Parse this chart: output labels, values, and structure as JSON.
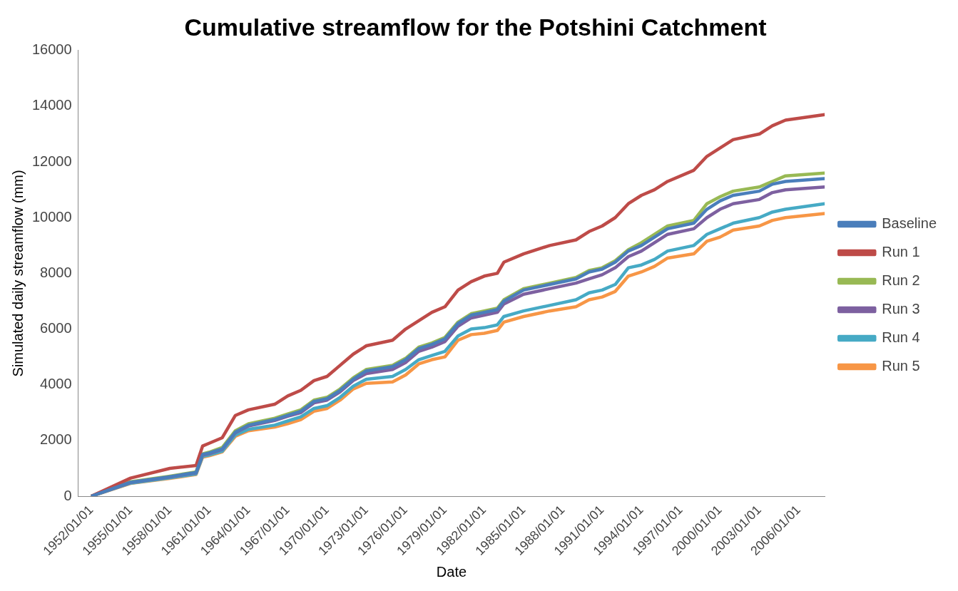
{
  "chart_data": {
    "type": "line",
    "title": "Cumulative streamflow for the Potshini Catchment",
    "xlabel": "Date",
    "ylabel": "Simulated daily streamflow (mm)",
    "x": [
      "1952-01",
      "1955-01",
      "1958-01",
      "1960-01",
      "1960-07",
      "1961-01",
      "1962-01",
      "1963-01",
      "1964-01",
      "1966-01",
      "1967-01",
      "1968-01",
      "1969-01",
      "1970-01",
      "1971-01",
      "1972-01",
      "1973-01",
      "1975-01",
      "1976-01",
      "1977-01",
      "1978-01",
      "1979-01",
      "1980-01",
      "1981-01",
      "1982-01",
      "1983-01",
      "1983-07",
      "1985-01",
      "1987-01",
      "1989-01",
      "1990-01",
      "1991-01",
      "1992-01",
      "1993-01",
      "1994-01",
      "1995-01",
      "1996-01",
      "1998-01",
      "1999-01",
      "2000-01",
      "2001-01",
      "2003-01",
      "2004-01",
      "2005-01",
      "2008-01"
    ],
    "series": [
      {
        "name": "Baseline",
        "color": "#4a7ebb",
        "values": [
          0,
          500,
          700,
          850,
          1500,
          1550,
          1700,
          2300,
          2550,
          2750,
          2900,
          3050,
          3400,
          3500,
          3800,
          4200,
          4500,
          4650,
          4900,
          5300,
          5450,
          5650,
          6200,
          6500,
          6600,
          6700,
          7000,
          7400,
          7600,
          7800,
          8050,
          8150,
          8400,
          8800,
          9000,
          9300,
          9600,
          9800,
          10300,
          10600,
          10800,
          10950,
          11200,
          11300,
          11400
        ]
      },
      {
        "name": "Run 1",
        "color": "#be4b48",
        "values": [
          0,
          650,
          1000,
          1100,
          1800,
          1900,
          2100,
          2900,
          3100,
          3300,
          3600,
          3800,
          4150,
          4300,
          4700,
          5100,
          5400,
          5600,
          6000,
          6300,
          6600,
          6800,
          7400,
          7700,
          7900,
          8000,
          8400,
          8700,
          9000,
          9200,
          9500,
          9700,
          10000,
          10500,
          10800,
          11000,
          11300,
          11700,
          12200,
          12500,
          12800,
          13000,
          13300,
          13500,
          13700
        ]
      },
      {
        "name": "Run 2",
        "color": "#98b954",
        "values": [
          0,
          520,
          720,
          870,
          1520,
          1580,
          1750,
          2350,
          2600,
          2800,
          2950,
          3100,
          3450,
          3550,
          3850,
          4250,
          4550,
          4700,
          4950,
          5350,
          5500,
          5700,
          6250,
          6550,
          6650,
          6750,
          7050,
          7450,
          7650,
          7850,
          8100,
          8200,
          8450,
          8850,
          9100,
          9400,
          9700,
          9900,
          10500,
          10750,
          10950,
          11100,
          11300,
          11500,
          11600
        ]
      },
      {
        "name": "Run 3",
        "color": "#7d60a0",
        "values": [
          0,
          490,
          690,
          840,
          1480,
          1530,
          1680,
          2280,
          2520,
          2720,
          2870,
          3000,
          3350,
          3450,
          3750,
          4150,
          4400,
          4550,
          4800,
          5200,
          5350,
          5550,
          6100,
          6400,
          6500,
          6600,
          6900,
          7250,
          7450,
          7650,
          7800,
          7950,
          8200,
          8600,
          8800,
          9100,
          9400,
          9600,
          10000,
          10300,
          10500,
          10650,
          10900,
          11000,
          11100
        ]
      },
      {
        "name": "Run 4",
        "color": "#46aac5",
        "values": [
          0,
          470,
          660,
          800,
          1430,
          1480,
          1620,
          2200,
          2400,
          2550,
          2700,
          2850,
          3150,
          3250,
          3550,
          3950,
          4200,
          4300,
          4550,
          4900,
          5050,
          5200,
          5750,
          6000,
          6050,
          6150,
          6450,
          6650,
          6850,
          7050,
          7300,
          7400,
          7600,
          8200,
          8300,
          8500,
          8800,
          9000,
          9400,
          9600,
          9800,
          10000,
          10200,
          10300,
          10500
        ]
      },
      {
        "name": "Run 5",
        "color": "#f79646",
        "values": [
          0,
          460,
          640,
          780,
          1400,
          1450,
          1590,
          2150,
          2350,
          2480,
          2600,
          2750,
          3050,
          3150,
          3450,
          3850,
          4050,
          4100,
          4350,
          4750,
          4900,
          5000,
          5600,
          5800,
          5850,
          5950,
          6250,
          6450,
          6650,
          6800,
          7050,
          7150,
          7350,
          7900,
          8050,
          8250,
          8550,
          8700,
          9150,
          9300,
          9550,
          9700,
          9900,
          10000,
          10150
        ]
      }
    ],
    "xlim": [
      "1951-01-01",
      "2008-01-01"
    ],
    "xticks": [
      {
        "value": "1952-01-01",
        "label": "1952/01/01"
      },
      {
        "value": "1955-01-01",
        "label": "1955/01/01"
      },
      {
        "value": "1958-01-01",
        "label": "1958/01/01"
      },
      {
        "value": "1961-01-01",
        "label": "1961/01/01"
      },
      {
        "value": "1964-01-01",
        "label": "1964/01/01"
      },
      {
        "value": "1967-01-01",
        "label": "1967/01/01"
      },
      {
        "value": "1970-01-01",
        "label": "1970/01/01"
      },
      {
        "value": "1973-01-01",
        "label": "1973/01/01"
      },
      {
        "value": "1976-01-01",
        "label": "1976/01/01"
      },
      {
        "value": "1979-01-01",
        "label": "1979/01/01"
      },
      {
        "value": "1982-01-01",
        "label": "1982/01/01"
      },
      {
        "value": "1985-01-01",
        "label": "1985/01/01"
      },
      {
        "value": "1988-01-01",
        "label": "1988/01/01"
      },
      {
        "value": "1991-01-01",
        "label": "1991/01/01"
      },
      {
        "value": "1994-01-01",
        "label": "1994/01/01"
      },
      {
        "value": "1997-01-01",
        "label": "1997/01/01"
      },
      {
        "value": "2000-01-01",
        "label": "2000/01/01"
      },
      {
        "value": "2003-01-01",
        "label": "2003/01/01"
      },
      {
        "value": "2006-01-01",
        "label": "2006/01/01"
      }
    ],
    "ylim": [
      0,
      16000
    ],
    "yticks": [
      0,
      2000,
      4000,
      6000,
      8000,
      10000,
      12000,
      14000,
      16000
    ],
    "grid": false,
    "legend": "right",
    "marker": "none",
    "line_style": "solid"
  }
}
